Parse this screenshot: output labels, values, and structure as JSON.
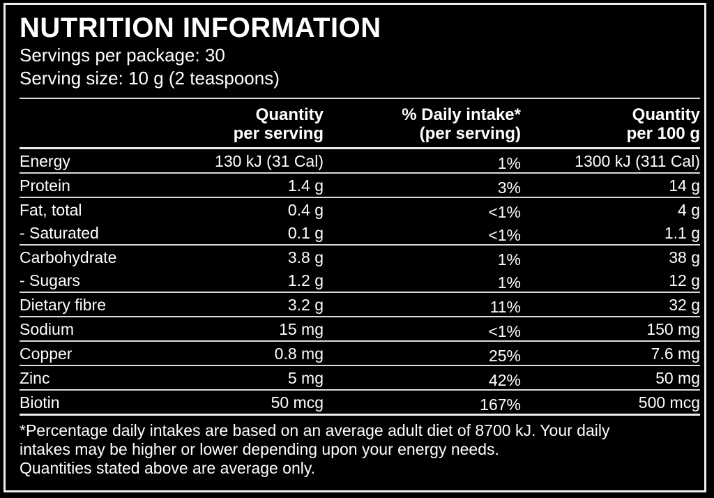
{
  "panel": {
    "title": "NUTRITION INFORMATION",
    "servings_per_package": "Servings per package: 30",
    "serving_size": "Serving size: 10 g (2 teaspoons)"
  },
  "table": {
    "columns": [
      {
        "line1": "Quantity",
        "line2": "per serving"
      },
      {
        "line1": "% Daily intake*",
        "line2": "(per serving)"
      },
      {
        "line1": "Quantity",
        "line2": "per 100 g"
      }
    ],
    "rows": [
      {
        "label": "Energy",
        "per_serving": "130 kJ (31 Cal)",
        "daily_intake": "1%",
        "per_100g": "1300 kJ (311 Cal)",
        "sub": false
      },
      {
        "label": "Protein",
        "per_serving": "1.4 g",
        "daily_intake": "3%",
        "per_100g": "14 g",
        "sub": false
      },
      {
        "label": "Fat, total",
        "per_serving": "0.4 g",
        "daily_intake": "<1%",
        "per_100g": "4 g",
        "sub": false
      },
      {
        "label": "- Saturated",
        "per_serving": "0.1 g",
        "daily_intake": "<1%",
        "per_100g": "1.1 g",
        "sub": true
      },
      {
        "label": "Carbohydrate",
        "per_serving": "3.8 g",
        "daily_intake": "1%",
        "per_100g": "38 g",
        "sub": false
      },
      {
        "label": "- Sugars",
        "per_serving": "1.2 g",
        "daily_intake": "1%",
        "per_100g": "12 g",
        "sub": true
      },
      {
        "label": "Dietary fibre",
        "per_serving": "3.2 g",
        "daily_intake": "11%",
        "per_100g": "32 g",
        "sub": false
      },
      {
        "label": "Sodium",
        "per_serving": "15 mg",
        "daily_intake": "<1%",
        "per_100g": "150 mg",
        "sub": false
      },
      {
        "label": "Copper",
        "per_serving": "0.8 mg",
        "daily_intake": "25%",
        "per_100g": "7.6 mg",
        "sub": false
      },
      {
        "label": "Zinc",
        "per_serving": "5 mg",
        "daily_intake": "42%",
        "per_100g": "50 mg",
        "sub": false
      },
      {
        "label": "Biotin",
        "per_serving": "50 mcg",
        "daily_intake": "167%",
        "per_100g": "500 mcg",
        "sub": false
      }
    ]
  },
  "footnote": {
    "lines": [
      "*Percentage daily intakes are based on an average adult diet of 8700 kJ. Your daily",
      "intakes may be higher or lower depending upon your energy needs.",
      "Quantities stated above are average only."
    ]
  },
  "colors": {
    "background": "#000000",
    "text": "#ffffff",
    "rule_thin": "#dcdcdc",
    "rule_thick": "#ededed"
  }
}
